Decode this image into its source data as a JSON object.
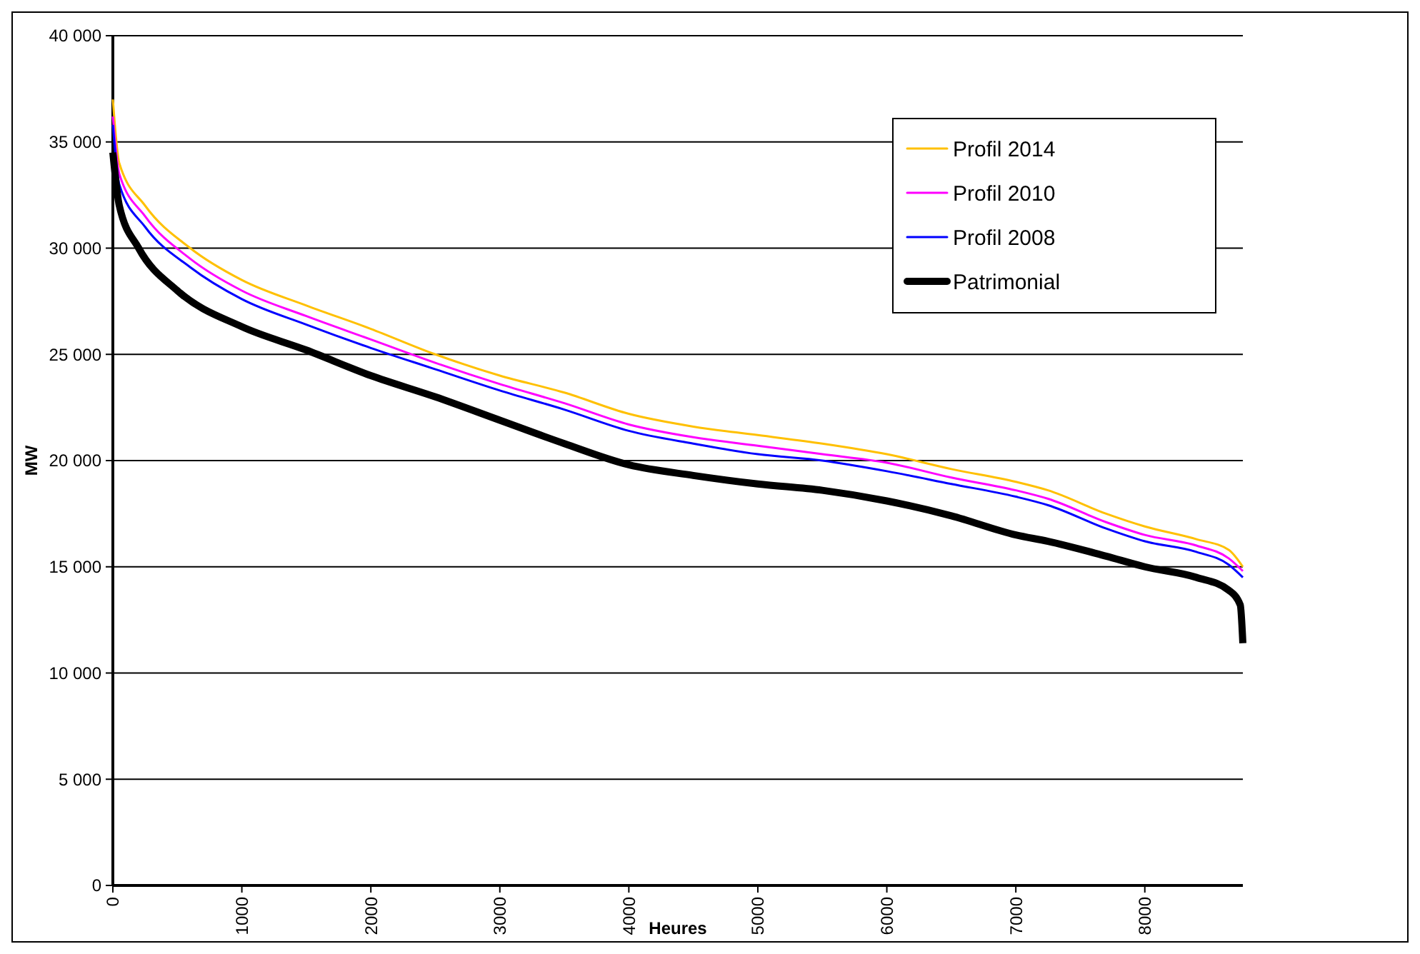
{
  "chart_data": {
    "type": "line",
    "xlabel": "Heures",
    "ylabel": "MW",
    "x": [
      0,
      50,
      250,
      600,
      1000,
      1500,
      2000,
      2500,
      3000,
      3500,
      4000,
      4500,
      5000,
      5500,
      6000,
      6500,
      7000,
      7250,
      7700,
      8000,
      8400,
      8650,
      8760
    ],
    "series": [
      {
        "name": "Profil 2014",
        "color": "#ffc000",
        "values": [
          37000,
          34000,
          32000,
          30000,
          28500,
          27300,
          26200,
          25000,
          24000,
          23200,
          22200,
          21600,
          21200,
          20800,
          20300,
          19600,
          19000,
          18600,
          17500,
          16900,
          16300,
          15800,
          15000
        ]
      },
      {
        "name": "Profil 2010",
        "color": "#ff00ff",
        "values": [
          36200,
          33500,
          31500,
          29500,
          28000,
          26800,
          25700,
          24600,
          23600,
          22700,
          21700,
          21100,
          20700,
          20300,
          19900,
          19200,
          18600,
          18200,
          17100,
          16500,
          16000,
          15400,
          14800
        ]
      },
      {
        "name": "Profil 2008",
        "color": "#0000ff",
        "values": [
          35800,
          33000,
          31000,
          29100,
          27600,
          26400,
          25300,
          24300,
          23300,
          22400,
          21400,
          20800,
          20300,
          20000,
          19500,
          18900,
          18300,
          17900,
          16800,
          16200,
          15700,
          15100,
          14500
        ]
      },
      {
        "name": "Patrimonial",
        "color": "#000000",
        "x": [
          0,
          50,
          200,
          500,
          1000,
          1500,
          2000,
          2500,
          3000,
          3500,
          4000,
          4500,
          5000,
          5500,
          6000,
          6500,
          7000,
          7250,
          7700,
          8000,
          8400,
          8650,
          8740,
          8760
        ],
        "values": [
          34500,
          32000,
          30000,
          28000,
          26300,
          25200,
          24000,
          23000,
          21900,
          20800,
          19800,
          19300,
          18900,
          18600,
          18100,
          17400,
          16500,
          16200,
          15500,
          15000,
          14500,
          13900,
          13200,
          11400
        ]
      }
    ],
    "xlim": [
      0,
      8760
    ],
    "xticks": [
      0,
      1000,
      2000,
      3000,
      4000,
      5000,
      6000,
      7000,
      8000
    ],
    "ylim": [
      0,
      40000
    ],
    "yticks": [
      {
        "value": 0,
        "label": "0"
      },
      {
        "value": 5000,
        "label": "5 000"
      },
      {
        "value": 10000,
        "label": "10 000"
      },
      {
        "value": 15000,
        "label": "15 000"
      },
      {
        "value": 20000,
        "label": "20 000"
      },
      {
        "value": 25000,
        "label": "25 000"
      },
      {
        "value": 30000,
        "label": "30 000"
      },
      {
        "value": 35000,
        "label": "35 000"
      },
      {
        "value": 40000,
        "label": "40 000"
      }
    ],
    "grid": "y",
    "legend": "top right",
    "line_style": "solid"
  }
}
